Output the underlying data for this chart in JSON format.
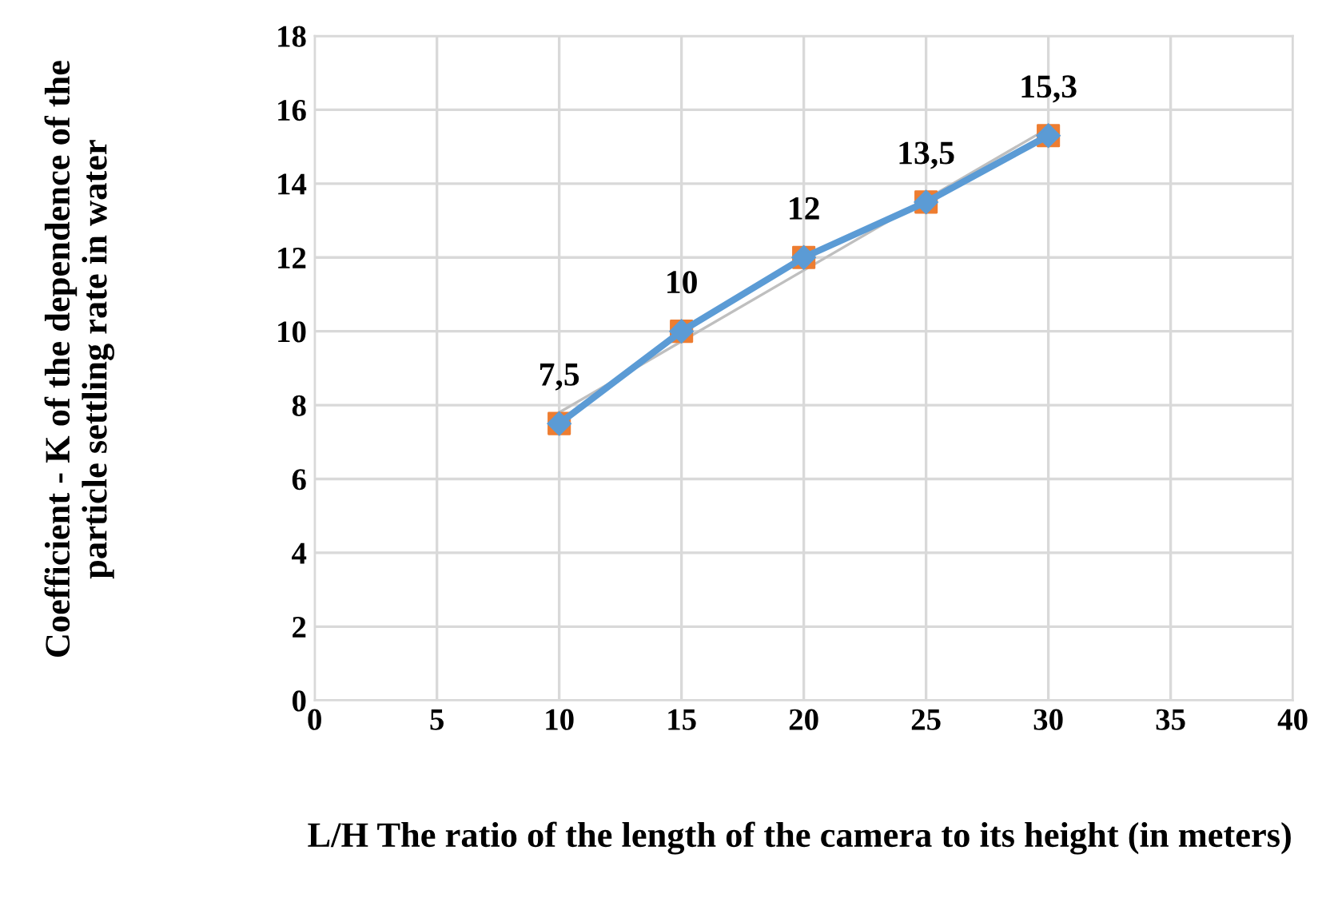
{
  "chart_data": {
    "type": "scatter",
    "xlabel": "L/H The ratio of the length of the camera to its height (in meters)",
    "ylabel": "Coefficient - K of the dependence of the particle settling rate in water",
    "x": [
      10,
      15,
      20,
      25,
      30
    ],
    "series": [
      {
        "type": "line",
        "x": [
          10,
          30
        ],
        "values": [
          7.8,
          15.5
        ],
        "color": "#bfbfbf",
        "marker": "none"
      },
      {
        "values": [
          7.5,
          10,
          12,
          13.5,
          15.3
        ],
        "color": "#ed7d31",
        "marker": "square",
        "value_labels": [
          "7,5",
          "10",
          "12",
          "13,5",
          "15,3"
        ]
      },
      {
        "type": "line",
        "values": [
          7.5,
          10,
          12,
          13.5,
          15.3
        ],
        "color": "#5b9bd5",
        "marker": "diamond"
      }
    ],
    "xlim": [
      0,
      40
    ],
    "xticks": [
      0,
      5,
      10,
      15,
      20,
      25,
      30,
      35,
      40
    ],
    "ylim": [
      0,
      18
    ],
    "yticks": [
      0,
      2,
      4,
      6,
      8,
      10,
      12,
      14,
      16,
      18
    ],
    "grid": true,
    "legend": false
  }
}
